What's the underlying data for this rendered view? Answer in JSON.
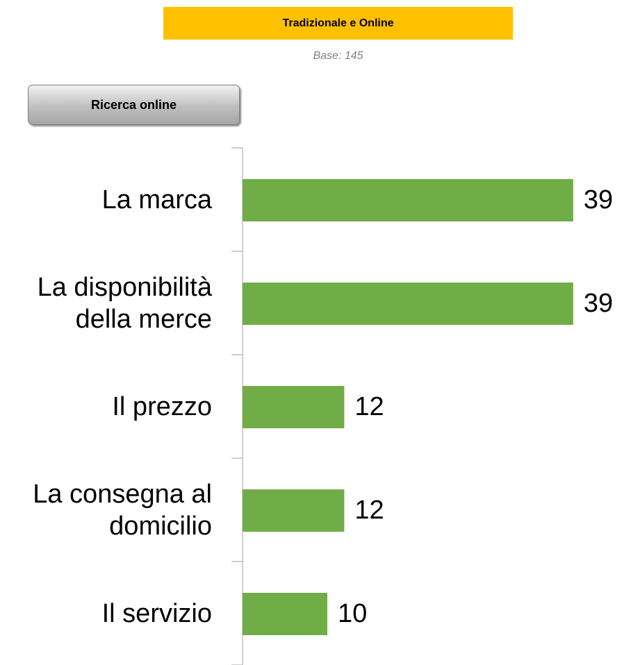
{
  "chart_data": {
    "type": "bar",
    "orientation": "horizontal",
    "title": "Tradizionale e Online",
    "subtitle": "Base: 145",
    "panel_label": "Ricerca online",
    "categories": [
      "La marca",
      "La disponibilità\ndella merce",
      "Il prezzo",
      "La consegna al\ndomicilio",
      "Il servizio"
    ],
    "values": [
      39,
      39,
      12,
      12,
      10
    ],
    "color": "#70ad47"
  }
}
